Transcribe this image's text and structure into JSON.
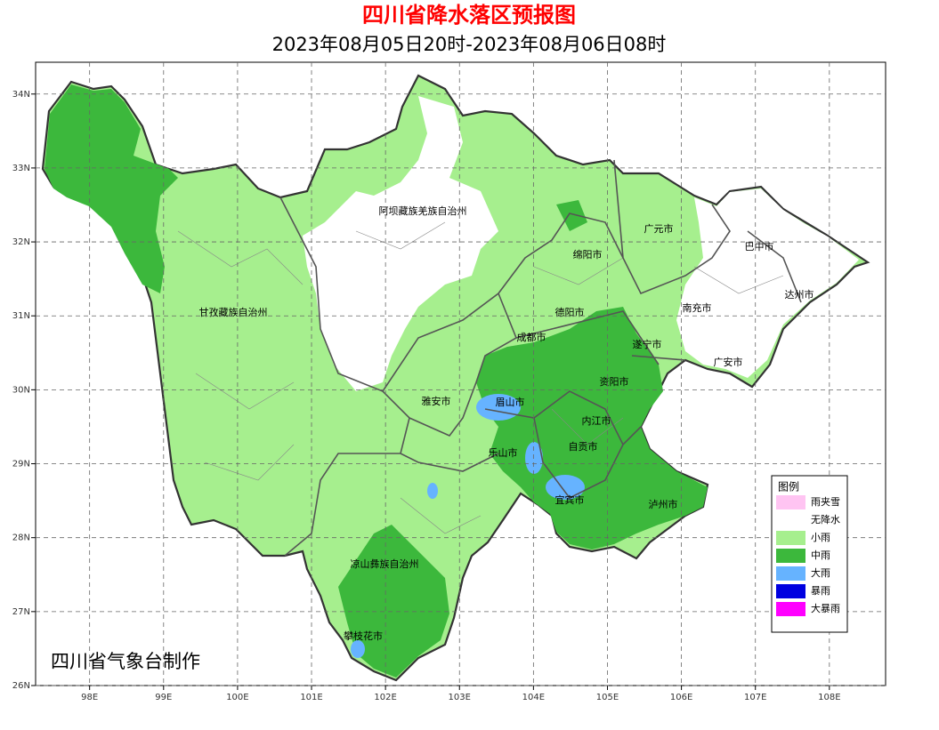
{
  "header": {
    "title": "四川省降水落区预报图",
    "subtitle": "2023年08月05日20时-2023年08月06日08时"
  },
  "map": {
    "xlim": [
      97.27,
      108.76
    ],
    "ylim": [
      26,
      34.43
    ],
    "grid": true,
    "xticks": [
      {
        "value": 98,
        "label": "98E"
      },
      {
        "value": 99,
        "label": "99E"
      },
      {
        "value": 100,
        "label": "100E"
      },
      {
        "value": 101,
        "label": "101E"
      },
      {
        "value": 102,
        "label": "102E"
      },
      {
        "value": 103,
        "label": "103E"
      },
      {
        "value": 104,
        "label": "104E"
      },
      {
        "value": 105,
        "label": "105E"
      },
      {
        "value": 106,
        "label": "106E"
      },
      {
        "value": 107,
        "label": "107E"
      },
      {
        "value": 108,
        "label": "108E"
      }
    ],
    "yticks": [
      {
        "value": 26,
        "label": "26N"
      },
      {
        "value": 27,
        "label": "27N"
      },
      {
        "value": 28,
        "label": "28N"
      },
      {
        "value": 29,
        "label": "29N"
      },
      {
        "value": 30,
        "label": "30N"
      },
      {
        "value": 31,
        "label": "31N"
      },
      {
        "value": 32,
        "label": "32N"
      },
      {
        "value": 33,
        "label": "33N"
      },
      {
        "value": 34,
        "label": "34N"
      }
    ],
    "regions": [
      "阿坝藏族羌族自治州",
      "广元市",
      "巴中市",
      "绵阳市",
      "达州市",
      "甘孜藏族自治州",
      "德阳市",
      "南充市",
      "成都市",
      "遂宁市",
      "广安市",
      "资阳市",
      "雅安市",
      "眉山市",
      "内江市",
      "自贡市",
      "乐山市",
      "宜宾市",
      "泸州市",
      "凉山彝族自治州",
      "攀枝花市"
    ]
  },
  "legend": {
    "title": "图例",
    "items": [
      {
        "label": "雨夹雪",
        "color": "#ffc4f2"
      },
      {
        "label": "无降水",
        "color": "#ffffff"
      },
      {
        "label": "小雨",
        "color": "#a6ef8e"
      },
      {
        "label": "中雨",
        "color": "#3cb83c"
      },
      {
        "label": "大雨",
        "color": "#66b3ff"
      },
      {
        "label": "暴雨",
        "color": "#0000e0"
      },
      {
        "label": "大暴雨",
        "color": "#ff00ff"
      }
    ]
  },
  "credit": "四川省气象台制作"
}
